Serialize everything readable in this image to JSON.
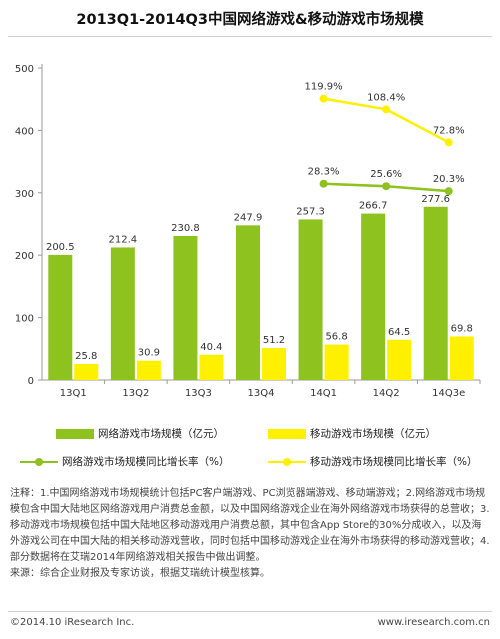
{
  "chart_data": {
    "type": "bar",
    "title": "2013Q1-2014Q3中国网络游戏&移动游戏市场规模",
    "categories": [
      "13Q1",
      "13Q2",
      "13Q3",
      "13Q4",
      "14Q1",
      "14Q2",
      "14Q3e"
    ],
    "ylim": [
      0,
      500
    ],
    "yticks": [
      0,
      100,
      200,
      300,
      400,
      500
    ],
    "xlabel": "",
    "ylabel": "",
    "grid": false,
    "legend_position": "bottom",
    "series": [
      {
        "name": "网络游戏市场规模（亿元）",
        "kind": "bar",
        "color": "#8dc21f",
        "values": [
          200.5,
          212.4,
          230.8,
          247.9,
          257.3,
          266.7,
          277.6
        ],
        "labels": [
          "200.5",
          "212.4",
          "230.8",
          "247.9",
          "257.3",
          "266.7",
          "277.6"
        ]
      },
      {
        "name": "移动游戏市场规模（亿元）",
        "kind": "bar",
        "color": "#fff000",
        "values": [
          25.8,
          30.9,
          40.4,
          51.2,
          56.8,
          64.5,
          69.8
        ],
        "labels": [
          "25.8",
          "30.9",
          "40.4",
          "51.2",
          "56.8",
          "64.5",
          "69.8"
        ]
      },
      {
        "name": "网络游戏市场规模同比增长率（%）",
        "kind": "line",
        "color": "#8dc21f",
        "x": [
          "14Q1",
          "14Q2",
          "14Q3e"
        ],
        "values": [
          28.3,
          25.6,
          20.3
        ],
        "labels": [
          "28.3%",
          "25.6%",
          "20.3%"
        ]
      },
      {
        "name": "移动游戏市场规模同比增长率（%）",
        "kind": "line",
        "color": "#fff000",
        "x": [
          "14Q1",
          "14Q2",
          "14Q3e"
        ],
        "values": [
          119.9,
          108.4,
          72.8
        ],
        "labels": [
          "119.9%",
          "108.4%",
          "72.8%"
        ]
      }
    ]
  },
  "notes": {
    "line1": "注释：1.中国网络游戏市场规模统计包括PC客户端游戏、PC浏览器端游戏、移动端游戏；2.网络游戏市场规模包含中国大陆地区网络游戏用户消费总金额，以及中国网络游戏企业在海外网络游戏市场获得的总营收；3.移动游戏市场规模包括中国大陆地区移动游戏用户消费总额，其中包含App Store的30%分成收入，以及海外游戏公司在中国大陆的相关移动游戏营收，同时包括中国移动游戏企业在海外市场获得的移动游戏营收；4.部分数据将在艾瑞2014年网络游戏相关报告中做出调整。",
    "line2": "来源：综合企业财报及专家访谈，根据艾瑞统计模型核算。"
  },
  "footer": {
    "copyright": "©2014.10 iResearch Inc.",
    "website": "www.iresearch.com.cn"
  }
}
